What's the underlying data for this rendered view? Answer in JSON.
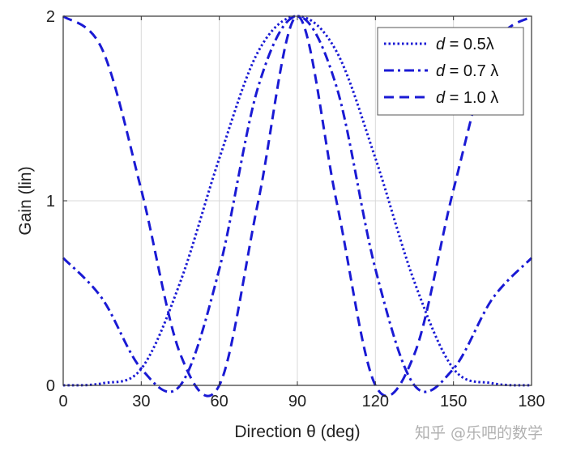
{
  "chart_data": {
    "type": "line",
    "title": "",
    "xlabel": "Direction θ (deg)",
    "ylabel": "Gain (lin)",
    "xlim": [
      0,
      180
    ],
    "ylim": [
      0,
      2
    ],
    "xticks": [
      0,
      30,
      60,
      90,
      120,
      150,
      180
    ],
    "yticks": [
      0,
      1,
      2
    ],
    "x_tick_labels": [
      "0",
      "30",
      "60",
      "90",
      "120",
      "150",
      "180"
    ],
    "y_tick_labels": [
      "0",
      "1",
      "2"
    ],
    "grid": true,
    "legend_position": "top-right",
    "series": [
      {
        "name": "d = 0.5λ",
        "legend_d": "d",
        "legend_rest": " = 0.5λ",
        "spacing_wavelengths": 0.5,
        "style": "dotted",
        "color": "#1a1ad4",
        "points": [
          [
            0,
            0
          ],
          [
            15,
            0.011
          ],
          [
            30,
            0.09
          ],
          [
            45,
            0.56
          ],
          [
            60,
            1.23
          ],
          [
            75,
            1.81
          ],
          [
            90,
            2
          ],
          [
            105,
            1.81
          ],
          [
            120,
            1.23
          ],
          [
            135,
            0.56
          ],
          [
            150,
            0.09
          ],
          [
            165,
            0.011
          ],
          [
            180,
            0
          ]
        ]
      },
      {
        "name": "d = 0.7 λ",
        "legend_d": "d",
        "legend_rest": " = 0.7 λ",
        "spacing_wavelengths": 0.7,
        "style": "dashdot",
        "color": "#1a1ad4",
        "points": [
          [
            0,
            0.69
          ],
          [
            15,
            0.47
          ],
          [
            30,
            0.09
          ],
          [
            45,
            0
          ],
          [
            60,
            0.63
          ],
          [
            75,
            1.62
          ],
          [
            90,
            2
          ],
          [
            105,
            1.62
          ],
          [
            120,
            0.63
          ],
          [
            135,
            0
          ],
          [
            150,
            0.09
          ],
          [
            165,
            0.47
          ],
          [
            180,
            0.69
          ]
        ]
      },
      {
        "name": "d = 1.0 λ",
        "legend_d": "d",
        "legend_rest": " = 1.0 λ",
        "spacing_wavelengths": 1.0,
        "style": "dashed",
        "color": "#1a1ad4",
        "points": [
          [
            0,
            2
          ],
          [
            15,
            1.82
          ],
          [
            30,
            1.06
          ],
          [
            45,
            0.17
          ],
          [
            60,
            0
          ],
          [
            75,
            1.0
          ],
          [
            90,
            2
          ],
          [
            105,
            1.0
          ],
          [
            120,
            0
          ],
          [
            135,
            0.17
          ],
          [
            150,
            1.06
          ],
          [
            165,
            1.82
          ],
          [
            180,
            2
          ]
        ]
      }
    ]
  },
  "watermark": "知乎 @乐吧的数学"
}
